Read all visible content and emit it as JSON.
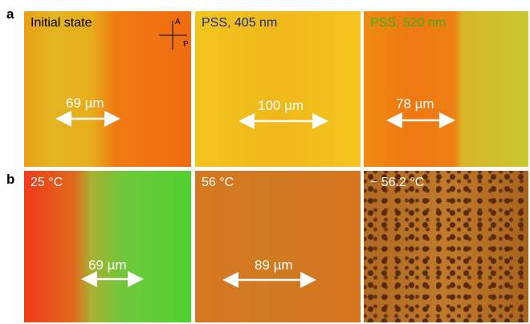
{
  "rows": [
    {
      "label": "a",
      "panels": [
        {
          "caption": "Initial state",
          "measure": "69 µm"
        },
        {
          "caption": "PSS, 405 nm",
          "measure": "100 µm"
        },
        {
          "caption": "PSS, 520 nm",
          "measure": "78 µm"
        }
      ]
    },
    {
      "label": "b",
      "panels": [
        {
          "caption": "25 °C",
          "measure": "69 µm"
        },
        {
          "caption": "56 °C",
          "measure": "89 µm"
        },
        {
          "caption": "~ 56.2 °C"
        }
      ]
    }
  ],
  "polarizers": {
    "analyzer": "A",
    "polarizer": "P"
  }
}
